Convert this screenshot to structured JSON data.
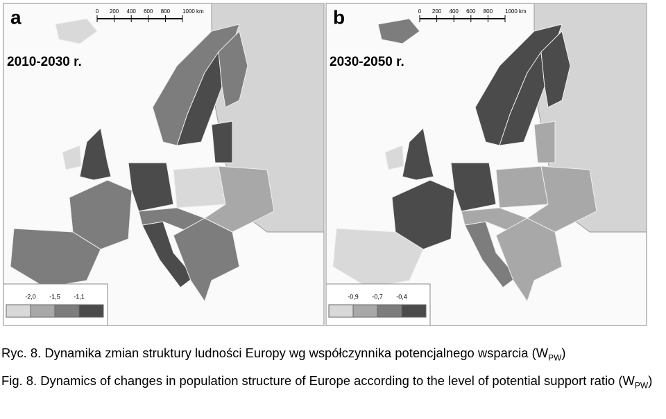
{
  "panels": [
    {
      "letter": "a",
      "period": "2010-2030 r.",
      "scale_labels": [
        "0",
        "200",
        "400",
        "600",
        "800",
        "1000 km"
      ],
      "legend": {
        "labels": [
          "-2,0",
          "-1,5",
          "-1,1"
        ],
        "colors": [
          "#d9d9d9",
          "#a8a8a8",
          "#7d7d7d",
          "#4b4b4b"
        ]
      }
    },
    {
      "letter": "b",
      "period": "2030-2050 r.",
      "scale_labels": [
        "0",
        "200",
        "400",
        "600",
        "800",
        "1000 km"
      ],
      "legend": {
        "labels": [
          "-0,9",
          "-0,7",
          "-0,4"
        ],
        "colors": [
          "#d9d9d9",
          "#a8a8a8",
          "#7d7d7d",
          "#4b4b4b"
        ]
      }
    }
  ],
  "caption": {
    "pl": {
      "text": "Ryc. 8. Dynamika zmian struktury ludności Europy wg współczynnika potencjalnego wsparcia (W",
      "sub": "PW",
      "end": ")"
    },
    "en": {
      "text": "Fig. 8. Dynamics of changes in population structure of Europe according to the level of potential support ratio (W",
      "sub": "PW",
      "end": ")"
    }
  }
}
